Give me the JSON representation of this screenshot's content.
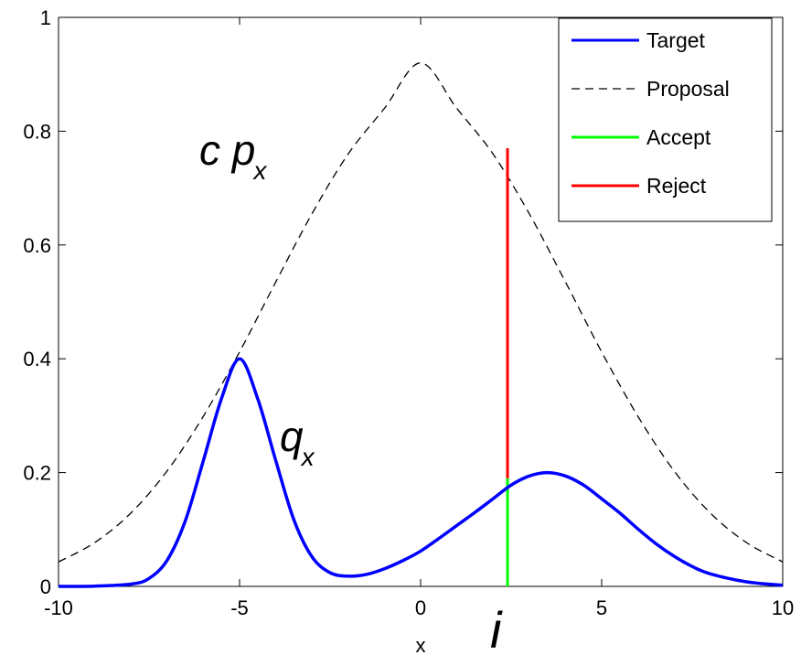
{
  "chart_data": {
    "type": "line",
    "title": "",
    "xlabel": "x",
    "ylabel": "",
    "xlim": [
      -10,
      10
    ],
    "ylim": [
      0,
      1
    ],
    "x_ticks": [
      -10,
      -5,
      0,
      5,
      10
    ],
    "x_tick_labels": [
      "-10",
      "-5",
      "0",
      "5",
      "10"
    ],
    "y_ticks": [
      0,
      0.2,
      0.4,
      0.6,
      0.8,
      1
    ],
    "y_tick_labels": [
      "0",
      "0.2",
      "0.4",
      "0.6",
      "0.8",
      "1"
    ],
    "grid": false,
    "legend_position": "top-right",
    "series": [
      {
        "name": "Target",
        "color": "#0000ff",
        "style": "solid",
        "x": [
          -10,
          -9,
          -8,
          -7.5,
          -7,
          -6.5,
          -6,
          -5.5,
          -5,
          -4.5,
          -4,
          -3.5,
          -3,
          -2.5,
          -2,
          -1.5,
          -1,
          -0.5,
          0,
          0.5,
          1,
          1.5,
          2,
          2.5,
          3,
          3.5,
          4,
          4.5,
          5,
          5.5,
          6,
          6.5,
          7,
          7.5,
          8,
          9,
          10
        ],
        "y": [
          0,
          0.0005,
          0.004,
          0.014,
          0.046,
          0.115,
          0.221,
          0.33,
          0.4,
          0.33,
          0.221,
          0.117,
          0.052,
          0.024,
          0.018,
          0.021,
          0.031,
          0.045,
          0.062,
          0.084,
          0.107,
          0.13,
          0.154,
          0.178,
          0.194,
          0.2,
          0.194,
          0.178,
          0.154,
          0.129,
          0.101,
          0.075,
          0.053,
          0.035,
          0.022,
          0.008,
          0.002
        ]
      },
      {
        "name": "Proposal",
        "color": "#000000",
        "style": "dashed",
        "x": [
          -10,
          -9,
          -8,
          -7,
          -6,
          -5,
          -4,
          -3,
          -2,
          -1,
          0,
          1,
          2,
          3,
          4,
          5,
          6,
          7,
          8,
          9,
          10
        ],
        "y": [
          0.043,
          0.077,
          0.129,
          0.203,
          0.299,
          0.412,
          0.535,
          0.655,
          0.76,
          0.84,
          0.92,
          0.84,
          0.76,
          0.655,
          0.535,
          0.412,
          0.299,
          0.203,
          0.129,
          0.077,
          0.043
        ]
      },
      {
        "name": "Accept",
        "color": "#00ff00",
        "style": "solid",
        "x": [
          2.4,
          2.4
        ],
        "y": [
          0,
          0.19
        ]
      },
      {
        "name": "Reject",
        "color": "#ff0000",
        "style": "solid",
        "x": [
          2.4,
          2.4
        ],
        "y": [
          0.19,
          0.77
        ]
      }
    ],
    "annotations": [
      {
        "text": "c p",
        "subscript": "x",
        "x": -6,
        "y": 0.76
      },
      {
        "text": "q",
        "subscript": "x",
        "x": -3.8,
        "y": 0.22
      },
      {
        "text": "i",
        "x": 2.2,
        "y": -0.1
      }
    ]
  }
}
